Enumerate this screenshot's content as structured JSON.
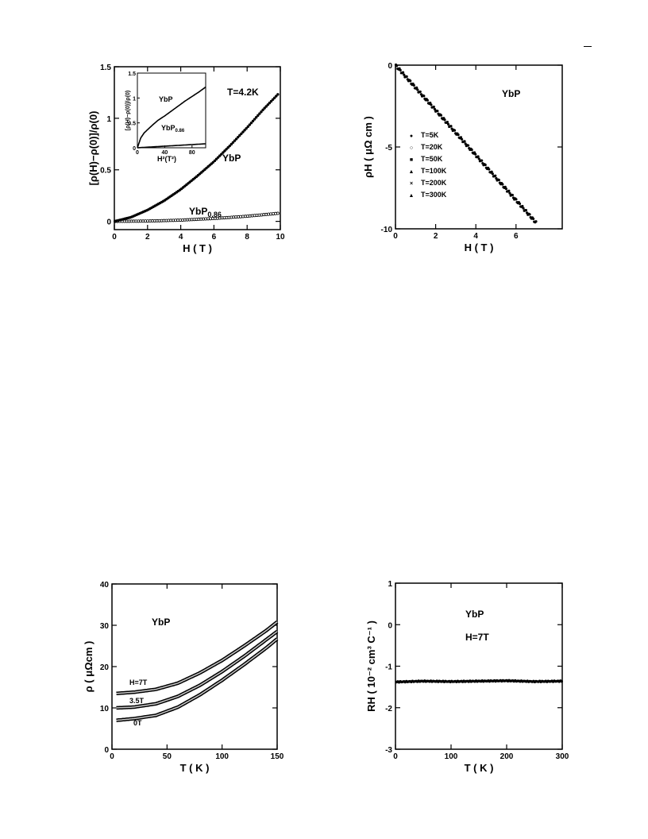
{
  "page": {
    "corner_mark": "—"
  },
  "chart_data": [
    {
      "id": "mr",
      "type": "scatter",
      "xlabel": "H ( T )",
      "ylabel": "[ρ(H)−ρ(0)]/ρ(0)",
      "xlim": [
        0,
        10
      ],
      "ylim": [
        -0.08,
        1.5
      ],
      "xticks": [
        0,
        2,
        4,
        6,
        8,
        10
      ],
      "yticks": [
        0,
        0.5,
        1,
        1.5
      ],
      "xtick_labels": [
        "0",
        "2",
        "4",
        "6",
        "8",
        "10"
      ],
      "ytick_labels": [
        "0",
        "0.5",
        "1",
        "1.5"
      ],
      "annotations": {
        "temp": "T=4.2K",
        "ybp": "YbP",
        "ybp86": "YbP",
        "ybp86_sub": "0.86"
      },
      "series": [
        {
          "marker": "filled",
          "x": [
            0,
            1,
            2,
            3,
            4,
            5,
            6,
            7,
            8,
            9,
            9.9
          ],
          "y": [
            0,
            0.04,
            0.11,
            0.2,
            0.31,
            0.44,
            0.58,
            0.74,
            0.91,
            1.09,
            1.24
          ]
        },
        {
          "marker": "open",
          "x": [
            0,
            2,
            4,
            6,
            8,
            10
          ],
          "y": [
            0,
            0.003,
            0.012,
            0.028,
            0.05,
            0.08
          ]
        }
      ],
      "inset": {
        "xlabel": "H²(T²)",
        "ylabel": "[ρ(H)−ρ(0)]/ρ(0)",
        "xlim": [
          0,
          100
        ],
        "ylim": [
          0,
          1.5
        ],
        "xticks": [
          0,
          40,
          80
        ],
        "yticks": [
          0,
          0.5,
          1,
          1.5
        ],
        "xtick_labels": [
          "0",
          "40",
          "80"
        ],
        "ytick_labels": [
          "0",
          "0.5",
          "1",
          "1.5"
        ],
        "annotations": {
          "ybp": "YbP",
          "ybp86": "YbP",
          "ybp86_sub": "0.86"
        },
        "series": [
          {
            "x": [
              0,
              5,
              10,
              20,
              30,
              40,
              50,
              60,
              70,
              80,
              90,
              100
            ],
            "y": [
              0,
              0.2,
              0.3,
              0.43,
              0.55,
              0.64,
              0.74,
              0.84,
              0.94,
              1.03,
              1.12,
              1.22
            ]
          },
          {
            "x": [
              0,
              100
            ],
            "y": [
              0,
              0.08
            ]
          }
        ]
      }
    },
    {
      "id": "hall",
      "type": "scatter",
      "xlabel": "H ( T )",
      "ylabel": "ρH ( μΩ cm )",
      "xlim": [
        0,
        8.3
      ],
      "ylim": [
        -10,
        0
      ],
      "xticks": [
        0,
        2,
        4,
        6
      ],
      "yticks": [
        0,
        -5,
        -10
      ],
      "xtick_labels": [
        "0",
        "2",
        "4",
        "6"
      ],
      "ytick_labels": [
        "0",
        "-5",
        "-10"
      ],
      "title": "YbP",
      "legend": [
        {
          "label": "T=5K",
          "marker": "●"
        },
        {
          "label": "T=20K",
          "marker": "○"
        },
        {
          "label": "T=50K",
          "marker": "■"
        },
        {
          "label": "T=100K",
          "marker": "▲"
        },
        {
          "label": "T=200K",
          "marker": "×"
        },
        {
          "label": "T=300K",
          "marker": "▲"
        }
      ],
      "series": [
        {
          "x": [
            0,
            1,
            2,
            3,
            4,
            5,
            6,
            7
          ],
          "y": [
            0,
            -1.38,
            -2.75,
            -4.13,
            -5.5,
            -6.88,
            -8.25,
            -9.63
          ]
        }
      ]
    },
    {
      "id": "rho",
      "type": "line",
      "xlabel": "T ( K )",
      "ylabel": "ρ ( μΩcm )",
      "xlim": [
        0,
        150
      ],
      "ylim": [
        0,
        40
      ],
      "xticks": [
        0,
        50,
        100,
        150
      ],
      "yticks": [
        0,
        10,
        20,
        30,
        40
      ],
      "xtick_labels": [
        "0",
        "50",
        "100",
        "150"
      ],
      "ytick_labels": [
        "0",
        "10",
        "20",
        "30",
        "40"
      ],
      "title": "YbP",
      "series": [
        {
          "name": "H=7T",
          "x": [
            4,
            20,
            40,
            60,
            80,
            100,
            120,
            140,
            150
          ],
          "y": [
            13.5,
            13.8,
            14.5,
            16,
            18.5,
            21.5,
            25,
            28.7,
            30.8
          ]
        },
        {
          "name": "3.5T",
          "x": [
            4,
            20,
            40,
            60,
            80,
            100,
            120,
            140,
            150
          ],
          "y": [
            10,
            10.2,
            11,
            12.8,
            15.5,
            18.8,
            22.5,
            26.5,
            28.5
          ]
        },
        {
          "name": "0T",
          "x": [
            4,
            20,
            40,
            60,
            80,
            100,
            120,
            140,
            150
          ],
          "y": [
            7,
            7.4,
            8.2,
            10.2,
            13.2,
            16.7,
            20.5,
            24.5,
            26.7
          ]
        }
      ]
    },
    {
      "id": "rh",
      "type": "scatter",
      "xlabel": "T ( K )",
      "ylabel": "RH ( 10⁻² cm³ C⁻¹ )",
      "xlim": [
        0,
        300
      ],
      "ylim": [
        -3,
        1
      ],
      "xticks": [
        0,
        100,
        200,
        300
      ],
      "yticks": [
        1,
        0,
        -1,
        -2,
        -3
      ],
      "xtick_labels": [
        "0",
        "100",
        "200",
        "300"
      ],
      "ytick_labels": [
        "1",
        "0",
        "-1",
        "-2",
        "-3"
      ],
      "title": "YbP",
      "subtitle": "H=7T",
      "series": [
        {
          "x": [
            0,
            50,
            100,
            150,
            200,
            250,
            300
          ],
          "y": [
            -1.38,
            -1.36,
            -1.37,
            -1.36,
            -1.35,
            -1.37,
            -1.36
          ]
        }
      ]
    }
  ]
}
